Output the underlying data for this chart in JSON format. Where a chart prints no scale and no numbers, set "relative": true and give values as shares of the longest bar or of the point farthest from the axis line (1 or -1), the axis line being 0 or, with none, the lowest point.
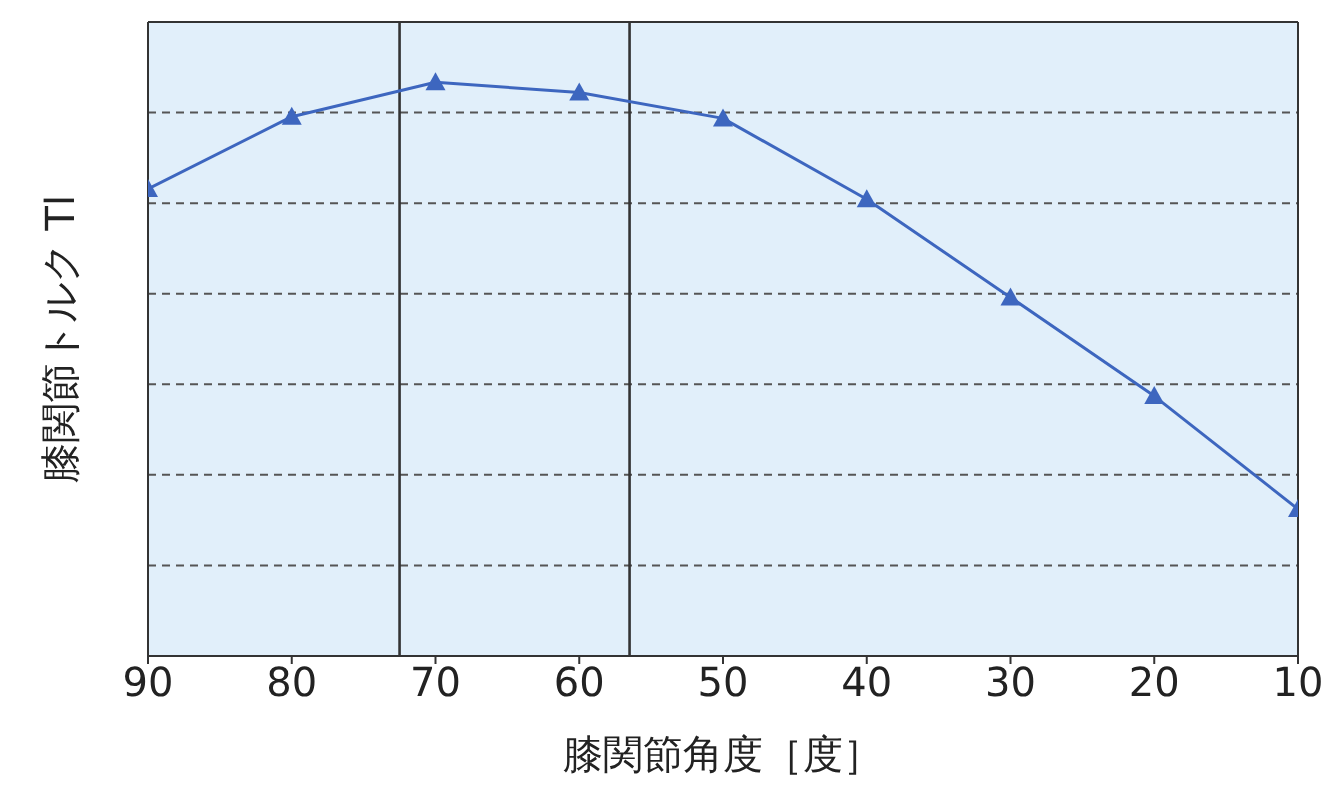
{
  "chart_data": {
    "type": "line",
    "relative": true,
    "xlabel": "膝関節角度［度］",
    "ylabel": "膝関節トルク Tl",
    "x": [
      90,
      80,
      70,
      60,
      50,
      40,
      30,
      20,
      10
    ],
    "series": [
      {
        "color": "#3d66bf",
        "values": [
          0.814,
          0.94,
          1,
          0.982,
          0.937,
          0.796,
          0.625,
          0.453,
          0.256
        ]
      }
    ],
    "xlim": [
      90,
      10
    ],
    "xticks": [
      90,
      80,
      70,
      60,
      50,
      40,
      30,
      20,
      10
    ],
    "ref_lines": [
      {
        "axis": "x",
        "value": 72.5,
        "color": "#333333"
      },
      {
        "axis": "x",
        "value": 56.5,
        "color": "#333333"
      }
    ],
    "grid": "y",
    "marker": "triangle",
    "line_style": "solid"
  }
}
